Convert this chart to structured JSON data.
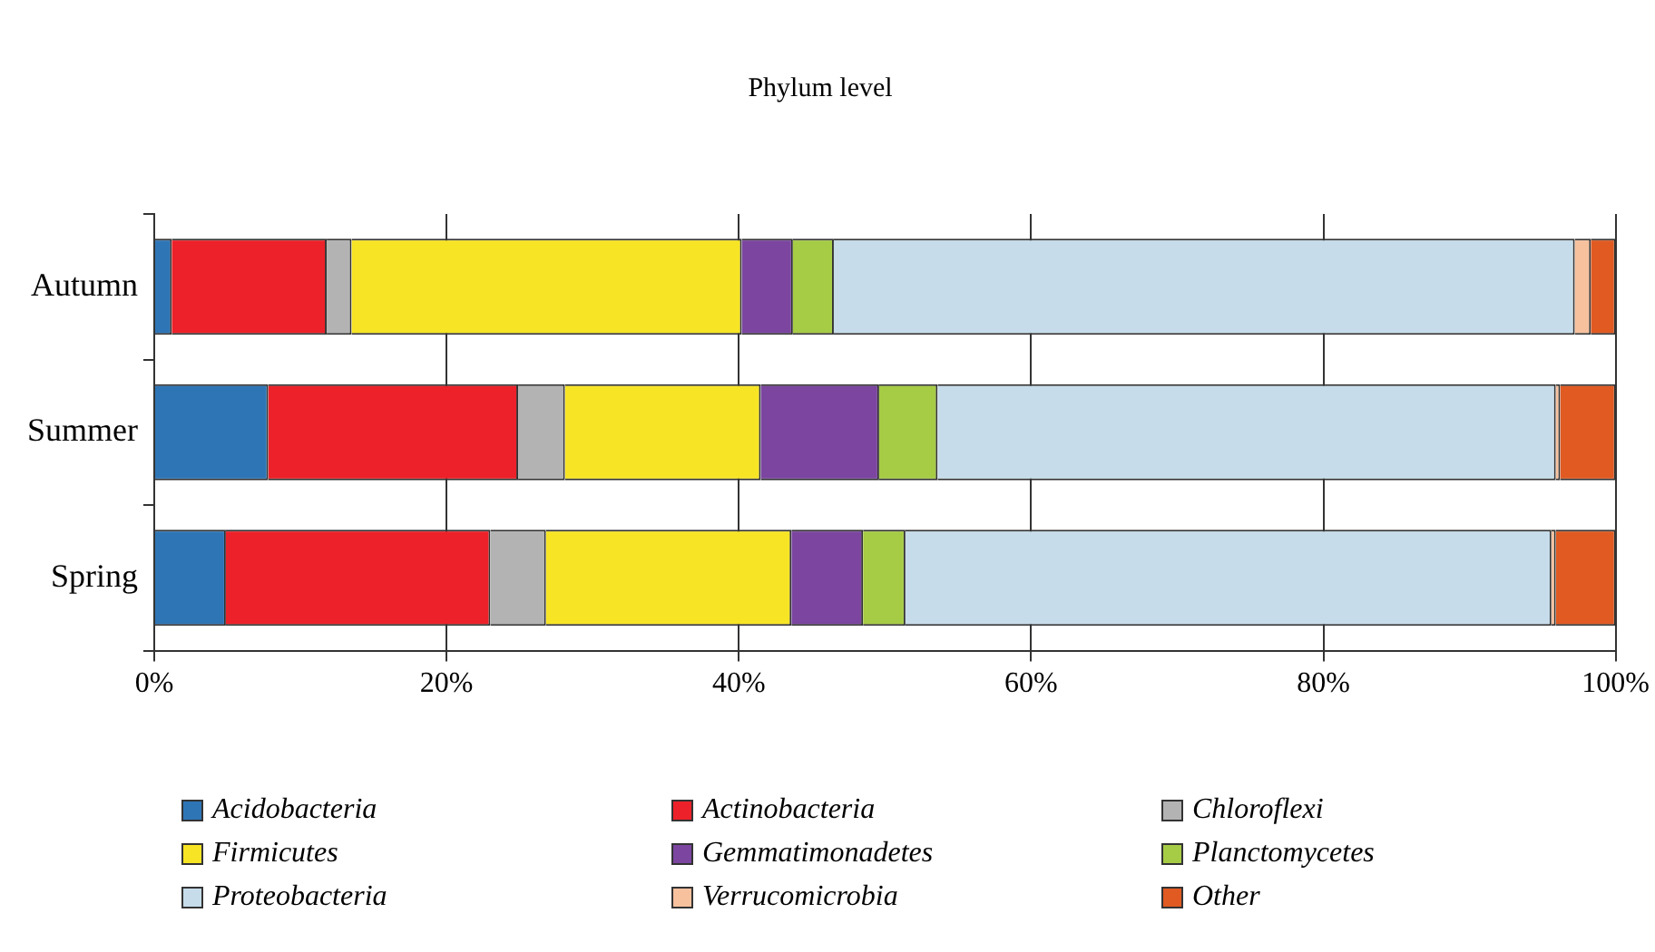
{
  "chart_data": {
    "type": "bar",
    "title": "Phylum level",
    "orientation": "horizontal",
    "stacked": true,
    "categories": [
      "Autumn",
      "Summer",
      "Spring"
    ],
    "series": [
      {
        "name": "Acidobacteria",
        "color": "#2e75b6",
        "values": [
          1.2,
          7.8,
          4.9
        ]
      },
      {
        "name": "Actinobacteria",
        "color": "#ed2129",
        "values": [
          10.6,
          17.1,
          18.1
        ]
      },
      {
        "name": "Chloroflexi",
        "color": "#b3b3b3",
        "values": [
          1.7,
          3.2,
          3.8
        ]
      },
      {
        "name": "Firmicutes",
        "color": "#f7e425",
        "values": [
          26.7,
          13.4,
          16.8
        ]
      },
      {
        "name": "Gemmatimonadetes",
        "color": "#7b45a0",
        "values": [
          3.5,
          8.1,
          4.9
        ]
      },
      {
        "name": "Planctomycetes",
        "color": "#a6cb45",
        "values": [
          2.8,
          4.0,
          2.9
        ]
      },
      {
        "name": "Proteobacteria",
        "color": "#c6dcea",
        "values": [
          50.7,
          42.3,
          44.2
        ]
      },
      {
        "name": "Verrucomicrobia",
        "color": "#f7c19e",
        "values": [
          1.1,
          0.3,
          0.3
        ]
      },
      {
        "name": "Other",
        "color": "#e05a22",
        "values": [
          1.7,
          3.8,
          4.1
        ]
      }
    ],
    "xlim": [
      0,
      100
    ],
    "xticks": [
      {
        "value": 0,
        "label": "0%"
      },
      {
        "value": 20,
        "label": "20%"
      },
      {
        "value": 40,
        "label": "40%"
      },
      {
        "value": 60,
        "label": "60%"
      },
      {
        "value": 80,
        "label": "80%"
      },
      {
        "value": 100,
        "label": "100%"
      }
    ],
    "grid": "x",
    "legend": "bottom"
  }
}
